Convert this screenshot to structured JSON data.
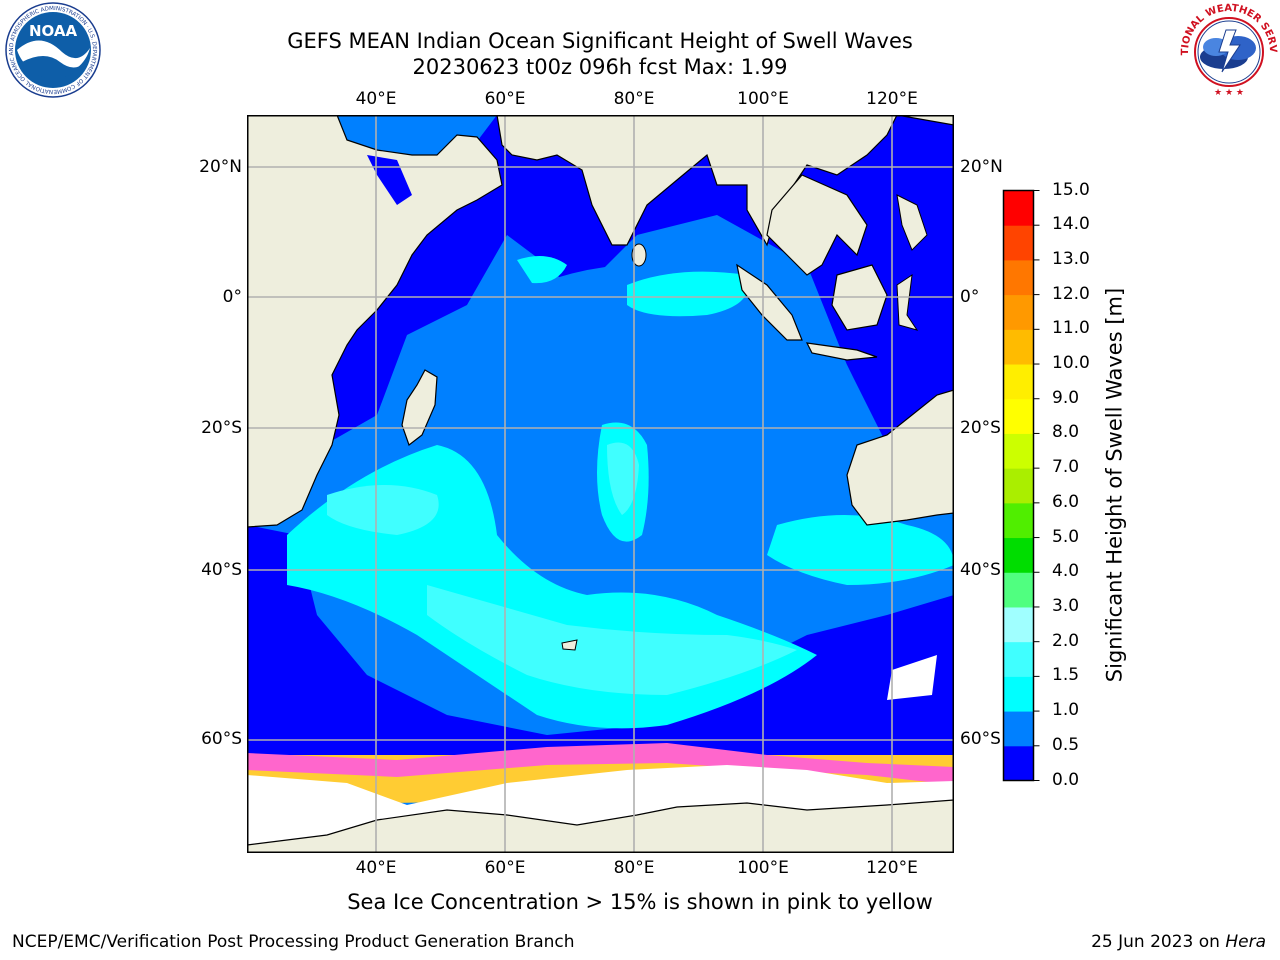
{
  "title": {
    "line1": "GEFS MEAN Indian Ocean Significant Height of Swell Waves",
    "line2": "20230623 t00z 096h fcst   Max: 1.99"
  },
  "map": {
    "lon_labels": [
      "40°E",
      "60°E",
      "80°E",
      "100°E",
      "120°E"
    ],
    "lat_labels": [
      "20°N",
      "0°",
      "20°S",
      "40°S",
      "60°S"
    ],
    "colors": {
      "land": "#eeeedd",
      "ice": "#ffffff",
      "ice_edge_pink": "#ff66cc",
      "ice_edge_yellow": "#ffcc33"
    }
  },
  "colorbar": {
    "ticks": [
      "0.0",
      "0.5",
      "1.0",
      "1.5",
      "2.0",
      "3.0",
      "4.0",
      "5.0",
      "6.0",
      "7.0",
      "8.0",
      "9.0",
      "10.0",
      "11.0",
      "12.0",
      "13.0",
      "14.0",
      "15.0"
    ],
    "colors": [
      "#0000ff",
      "#0080ff",
      "#00ffff",
      "#40ffff",
      "#a0ffff",
      "#50ff80",
      "#00dd00",
      "#50ee00",
      "#aaee00",
      "#ccff00",
      "#ffff00",
      "#ffee00",
      "#ffbb00",
      "#ff9900",
      "#ff7700",
      "#ff4400",
      "#ff0000"
    ],
    "label": "Significant Height of Swell Waves [m]"
  },
  "subtitle": "Sea Ice Concentration > 15% is shown in pink to yellow",
  "footer": {
    "left": "NCEP/EMC/Verification Post Processing Product Generation Branch",
    "date": "25 Jun 2023 on",
    "machine": "Hera"
  },
  "logos": {
    "noaa_text": "NOAA",
    "noaa_ring_text": "NATIONAL OCEANIC AND ATMOSPHERIC ADMINISTRATION · U.S. DEPARTMENT OF COMMERCE",
    "nws_ring_text": "NATIONAL WEATHER SERVICE"
  }
}
